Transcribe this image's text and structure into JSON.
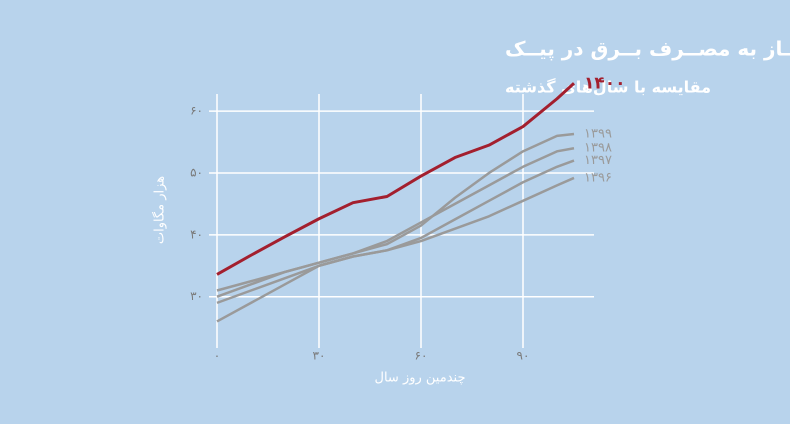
{
  "chart_data": {
    "type": "line",
    "title": "نیــاز به مصــرف بــرق در پیــک",
    "subtitle": "مقایسه با سال‌های گذشته",
    "x_label": "چندمین روز سال",
    "y_label": "هزار مگاوات",
    "x": [
      0,
      10,
      20,
      30,
      40,
      50,
      60,
      70,
      80,
      90,
      100,
      105
    ],
    "series": [
      {
        "name": "۱۳۹۶",
        "color": "#9a9a9a",
        "values": [
          26,
          29,
          32,
          35,
          36.5,
          37.5,
          39,
          41,
          43,
          45.5,
          48,
          49.2
        ]
      },
      {
        "name": "۱۳۹۷",
        "color": "#9a9a9a",
        "values": [
          29,
          31,
          33,
          35,
          36.5,
          37.5,
          39.5,
          42.5,
          45.5,
          48.5,
          51,
          52
        ]
      },
      {
        "name": "۱۳۹۸",
        "color": "#9a9a9a",
        "values": [
          30,
          32,
          34,
          35.5,
          37,
          39,
          42,
          45,
          48,
          51,
          53.5,
          54
        ]
      },
      {
        "name": "۱۳۹۹",
        "color": "#9a9a9a",
        "values": [
          31,
          32.5,
          34,
          35.5,
          37,
          38.5,
          41.5,
          46,
          50,
          53.5,
          56,
          56.3
        ]
      },
      {
        "name": "۱۴۰۰",
        "color": "#a31f2e",
        "values": [
          33.6,
          36.7,
          39.7,
          42.6,
          45.2,
          46.2,
          49.5,
          52.5,
          54.5,
          57.5,
          62,
          64.5
        ]
      }
    ],
    "xlim": [
      0,
      105
    ],
    "ylim": [
      23,
      66
    ],
    "xticks": [
      {
        "value": 0,
        "label": "۰"
      },
      {
        "value": 30,
        "label": "۳۰"
      },
      {
        "value": 60,
        "label": "۶۰"
      },
      {
        "value": 90,
        "label": "۹۰"
      }
    ],
    "yticks": [
      {
        "value": 30,
        "label": "۳۰"
      },
      {
        "value": 40,
        "label": "۴۰"
      },
      {
        "value": 50,
        "label": "۵۰"
      },
      {
        "value": 60,
        "label": "۶۰"
      }
    ],
    "grid": true
  }
}
